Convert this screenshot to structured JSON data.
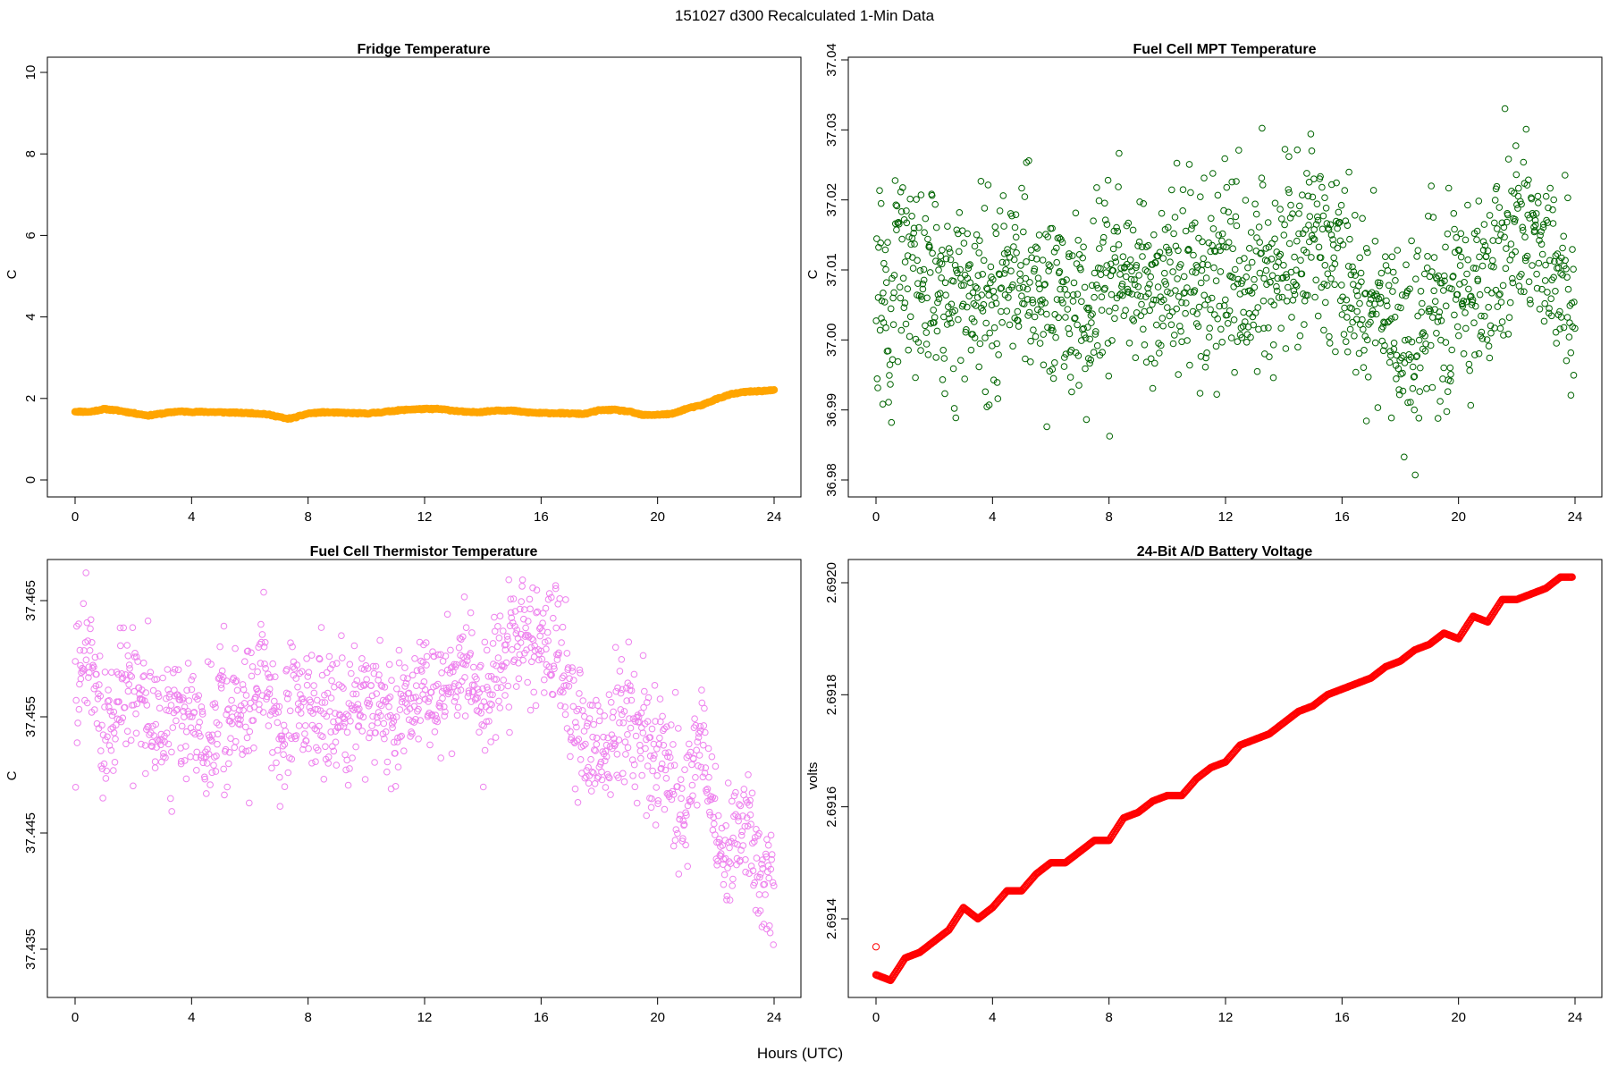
{
  "figure": {
    "title": "151027   d300   Recalculated 1-Min Data",
    "xlabel": "Hours (UTC)"
  },
  "chart_data": [
    {
      "type": "line",
      "title": "Fridge Temperature",
      "xlabel": "",
      "ylabel": "C",
      "xlim": [
        0,
        24
      ],
      "ylim": [
        0,
        10
      ],
      "xticks": [
        "0",
        "4",
        "8",
        "12",
        "16",
        "20",
        "24"
      ],
      "yticks": [
        "0",
        "2",
        "4",
        "6",
        "8",
        "10"
      ],
      "color": "#ffa500",
      "marker": "thick-line",
      "x": [
        0,
        0.5,
        1,
        1.5,
        2,
        2.5,
        3,
        3.5,
        4,
        4.5,
        5,
        5.5,
        6,
        6.5,
        7,
        7.25,
        7.5,
        8,
        8.5,
        9,
        9.5,
        10,
        10.5,
        11,
        11.5,
        12,
        12.5,
        13,
        13.5,
        14,
        14.5,
        15,
        15.5,
        16,
        16.5,
        17,
        17.5,
        18,
        18.5,
        19,
        19.5,
        20,
        20.5,
        21,
        21.5,
        22,
        22.5,
        23,
        23.5,
        24
      ],
      "y": [
        1.68,
        1.67,
        1.74,
        1.7,
        1.64,
        1.58,
        1.63,
        1.68,
        1.67,
        1.67,
        1.66,
        1.65,
        1.64,
        1.62,
        1.55,
        1.5,
        1.52,
        1.63,
        1.66,
        1.65,
        1.64,
        1.63,
        1.66,
        1.7,
        1.73,
        1.74,
        1.74,
        1.7,
        1.66,
        1.67,
        1.71,
        1.7,
        1.66,
        1.64,
        1.64,
        1.63,
        1.62,
        1.71,
        1.72,
        1.68,
        1.59,
        1.6,
        1.62,
        1.75,
        1.83,
        1.98,
        2.1,
        2.16,
        2.18,
        2.2
      ]
    },
    {
      "type": "scatter",
      "title": "Fuel Cell MPT Temperature",
      "xlabel": "",
      "ylabel": "C",
      "xlim": [
        0,
        24
      ],
      "ylim": [
        36.98,
        37.04
      ],
      "xticks": [
        "0",
        "4",
        "8",
        "12",
        "16",
        "20",
        "24"
      ],
      "yticks": [
        "36.98",
        "36.99",
        "37.00",
        "37.01",
        "37.02",
        "37.03",
        "37.04"
      ],
      "color": "#006400",
      "marker": "open-circle",
      "x": [
        0,
        0.5,
        1,
        1.5,
        2,
        2.5,
        3,
        3.5,
        4,
        4.5,
        5,
        5.5,
        6,
        6.5,
        7,
        7.5,
        8,
        8.5,
        9,
        9.5,
        10,
        10.5,
        11,
        11.5,
        12,
        12.5,
        13,
        13.5,
        14,
        14.5,
        15,
        15.5,
        16,
        16.5,
        17,
        17.5,
        18,
        18.5,
        19,
        19.5,
        20,
        20.5,
        21,
        21.5,
        22,
        22.5,
        23,
        23.5,
        24
      ],
      "y": [
        37.007,
        37.004,
        37.012,
        37.008,
        37.006,
        37.004,
        37.007,
        37.006,
        37.005,
        37.008,
        37.006,
        37.007,
        37.006,
        37.007,
        37.006,
        37.007,
        37.008,
        37.009,
        37.007,
        37.008,
        37.008,
        37.009,
        37.01,
        37.01,
        37.01,
        37.01,
        37.01,
        37.011,
        37.01,
        37.01,
        37.015,
        37.016,
        37.012,
        37.008,
        37.006,
        37.004,
        36.996,
        37.0,
        37.003,
        37.003,
        37.004,
        37.005,
        37.01,
        37.012,
        37.016,
        37.015,
        37.012,
        37.008,
        37.004
      ],
      "spread": 0.007,
      "points_per_interval": 28
    },
    {
      "type": "scatter",
      "title": "Fuel Cell Thermistor Temperature",
      "xlabel": "",
      "ylabel": "C",
      "xlim": [
        0,
        24
      ],
      "ylim": [
        37.431,
        37.469
      ],
      "xticks": [
        "0",
        "4",
        "8",
        "12",
        "16",
        "20",
        "24"
      ],
      "yticks": [
        "37.435",
        "37.445",
        "37.455",
        "37.465"
      ],
      "color": "#ee82ee",
      "marker": "open-circle",
      "x": [
        0,
        0.5,
        1,
        1.5,
        2,
        2.5,
        3,
        3.5,
        4,
        4.5,
        5,
        5.5,
        6,
        6.5,
        7,
        7.5,
        8,
        8.5,
        9,
        9.5,
        10,
        10.5,
        11,
        11.5,
        12,
        12.5,
        13,
        13.5,
        14,
        14.5,
        15,
        15.5,
        16,
        16.5,
        17,
        17.5,
        18,
        18.5,
        19,
        19.5,
        20,
        20.5,
        21,
        21.5,
        22,
        22.5,
        23,
        23.5,
        24
      ],
      "y": [
        37.456,
        37.462,
        37.453,
        37.456,
        37.458,
        37.456,
        37.453,
        37.456,
        37.455,
        37.452,
        37.455,
        37.454,
        37.456,
        37.459,
        37.453,
        37.456,
        37.456,
        37.455,
        37.455,
        37.455,
        37.457,
        37.456,
        37.455,
        37.456,
        37.458,
        37.456,
        37.457,
        37.461,
        37.457,
        37.458,
        37.461,
        37.463,
        37.462,
        37.462,
        37.456,
        37.452,
        37.451,
        37.453,
        37.456,
        37.454,
        37.452,
        37.449,
        37.447,
        37.453,
        37.445,
        37.443,
        37.447,
        37.44,
        37.441
      ],
      "spread": 0.0028,
      "points_per_interval": 28
    },
    {
      "type": "scatter",
      "title": "24-Bit A/D Battery Voltage",
      "xlabel": "",
      "ylabel": "volts",
      "xlim": [
        0,
        24
      ],
      "ylim": [
        2.69126,
        2.69206
      ],
      "xticks": [
        "0",
        "4",
        "8",
        "12",
        "16",
        "20",
        "24"
      ],
      "yticks": [
        "2.6914",
        "2.6916",
        "2.6918",
        "2.6920"
      ],
      "color": "#ff0000",
      "marker": "open-circle",
      "outlier": {
        "x": 0,
        "y": 2.69135
      },
      "x": [
        0,
        0.5,
        1,
        1.5,
        2,
        2.5,
        3,
        3.5,
        4,
        4.5,
        5,
        5.5,
        6,
        6.5,
        7,
        7.5,
        8,
        8.5,
        9,
        9.5,
        10,
        10.5,
        11,
        11.5,
        12,
        12.5,
        13,
        13.5,
        14,
        14.5,
        15,
        15.5,
        16,
        16.5,
        17,
        17.5,
        18,
        18.5,
        19,
        19.5,
        20,
        20.5,
        21,
        21.5,
        22,
        22.5,
        23,
        23.5,
        23.9
      ],
      "y": [
        2.6913,
        2.69129,
        2.69133,
        2.69134,
        2.69136,
        2.69138,
        2.69142,
        2.6914,
        2.69142,
        2.69145,
        2.69145,
        2.69148,
        2.6915,
        2.6915,
        2.69152,
        2.69154,
        2.69154,
        2.69158,
        2.69159,
        2.69161,
        2.69162,
        2.69162,
        2.69165,
        2.69167,
        2.69168,
        2.69171,
        2.69172,
        2.69173,
        2.69175,
        2.69177,
        2.69178,
        2.6918,
        2.69181,
        2.69182,
        2.69183,
        2.69185,
        2.69186,
        2.69188,
        2.69189,
        2.69191,
        2.6919,
        2.69194,
        2.69193,
        2.69197,
        2.69197,
        2.69198,
        2.69199,
        2.69201,
        2.69201
      ]
    }
  ]
}
